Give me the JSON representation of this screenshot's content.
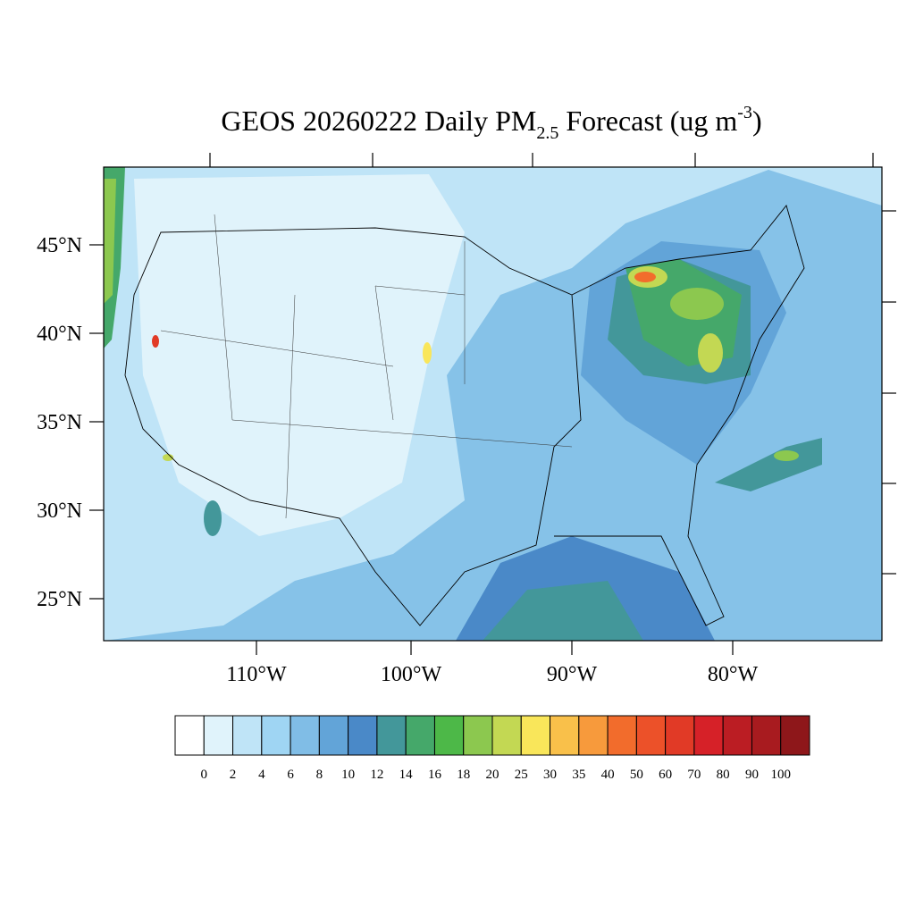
{
  "title": {
    "parts": [
      "GEOS 20260222 Daily PM",
      "2.5",
      " Forecast (ug m",
      "-3",
      ")"
    ]
  },
  "map": {
    "lat_labels": [
      "45°N",
      "40°N",
      "35°N",
      "30°N",
      "25°N"
    ],
    "lon_labels": [
      "110°W",
      "100°W",
      "90°W",
      "80°W"
    ]
  },
  "colorbar": {
    "colors": [
      "#ffffff",
      "#e0f3fb",
      "#bfe4f7",
      "#9fd5f3",
      "#80bde6",
      "#62a4d8",
      "#4a89c8",
      "#43979a",
      "#45a86a",
      "#4db848",
      "#8cc84f",
      "#c3d853",
      "#f9e65a",
      "#f9c04a",
      "#f79a3c",
      "#f26c2c",
      "#ec5129",
      "#e13a26",
      "#d62128",
      "#bb1d23",
      "#a81b1f",
      "#8e171a"
    ],
    "labels": [
      0,
      2,
      4,
      6,
      8,
      10,
      12,
      14,
      16,
      18,
      20,
      25,
      30,
      35,
      40,
      50,
      60,
      70,
      80,
      90,
      100
    ]
  }
}
